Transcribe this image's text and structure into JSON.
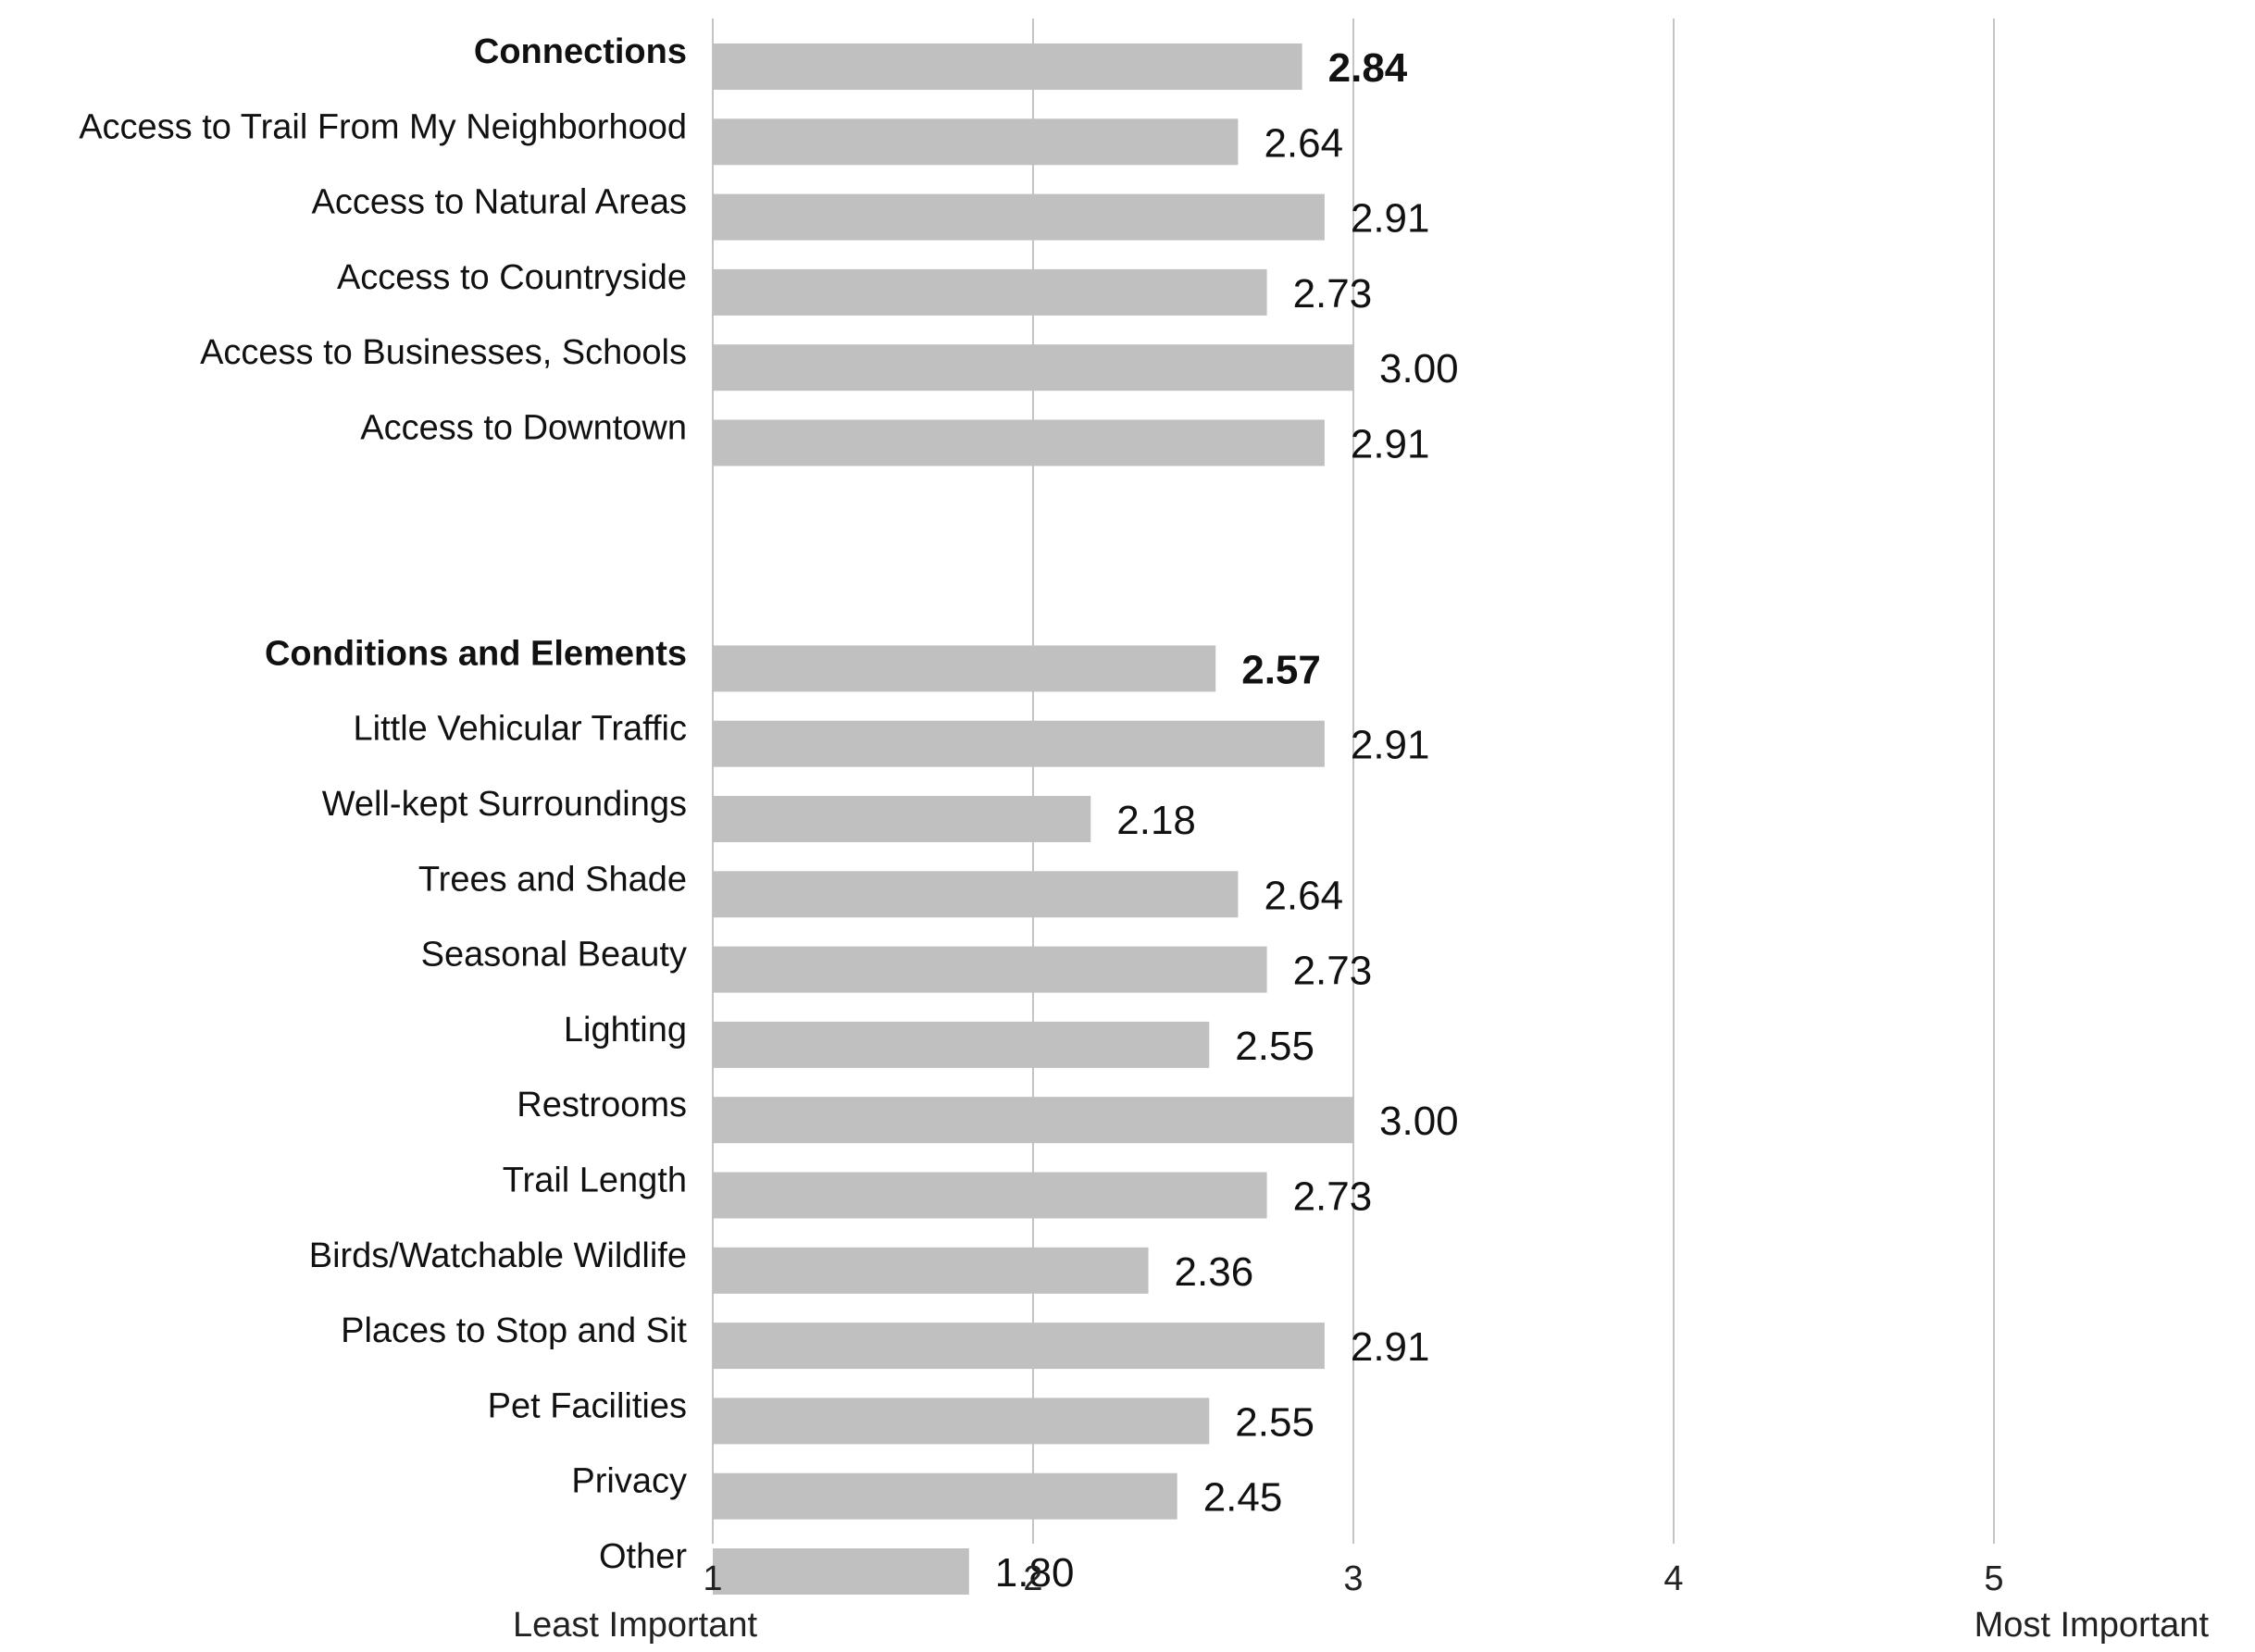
{
  "colors": {
    "bar": "#c0c0c0",
    "grid": "#c4c4c4",
    "text": "#111111"
  },
  "chart_data": {
    "type": "bar",
    "orientation": "horizontal",
    "grid": true,
    "xlim": [
      1,
      5
    ],
    "x_ticks": [
      "1",
      "2",
      "3",
      "4",
      "5"
    ],
    "axis_end_labels": {
      "left": "Least Important",
      "right": "Most Important"
    },
    "groups": [
      {
        "header": "Connections",
        "header_value": 2.84,
        "header_value_label": "2.84",
        "items": [
          {
            "label": "Access to Trail From My Neighborhood",
            "value": 2.64,
            "value_label": "2.64"
          },
          {
            "label": "Access to Natural Areas",
            "value": 2.91,
            "value_label": "2.91"
          },
          {
            "label": "Access to Countryside",
            "value": 2.73,
            "value_label": "2.73"
          },
          {
            "label": "Access to Businesses, Schools",
            "value": 3.0,
            "value_label": "3.00"
          },
          {
            "label": "Access to Downtown",
            "value": 2.91,
            "value_label": "2.91"
          }
        ]
      },
      {
        "header": "Conditions and Elements",
        "header_value": 2.57,
        "header_value_label": "2.57",
        "items": [
          {
            "label": "Little Vehicular Traffic",
            "value": 2.91,
            "value_label": "2.91"
          },
          {
            "label": "Well-kept Surroundings",
            "value": 2.18,
            "value_label": "2.18"
          },
          {
            "label": "Trees and Shade",
            "value": 2.64,
            "value_label": "2.64"
          },
          {
            "label": "Seasonal Beauty",
            "value": 2.73,
            "value_label": "2.73"
          },
          {
            "label": "Lighting",
            "value": 2.55,
            "value_label": "2.55"
          },
          {
            "label": "Restrooms",
            "value": 3.0,
            "value_label": "3.00"
          },
          {
            "label": "Trail Length",
            "value": 2.73,
            "value_label": "2.73"
          },
          {
            "label": "Birds/Watchable Wildlife",
            "value": 2.36,
            "value_label": "2.36"
          },
          {
            "label": "Places to Stop and Sit",
            "value": 2.91,
            "value_label": "2.91"
          },
          {
            "label": "Pet Facilities",
            "value": 2.55,
            "value_label": "2.55"
          },
          {
            "label": "Privacy",
            "value": 2.45,
            "value_label": "2.45"
          },
          {
            "label": "Other",
            "value": 1.8,
            "value_label": "1.80"
          }
        ]
      }
    ]
  }
}
